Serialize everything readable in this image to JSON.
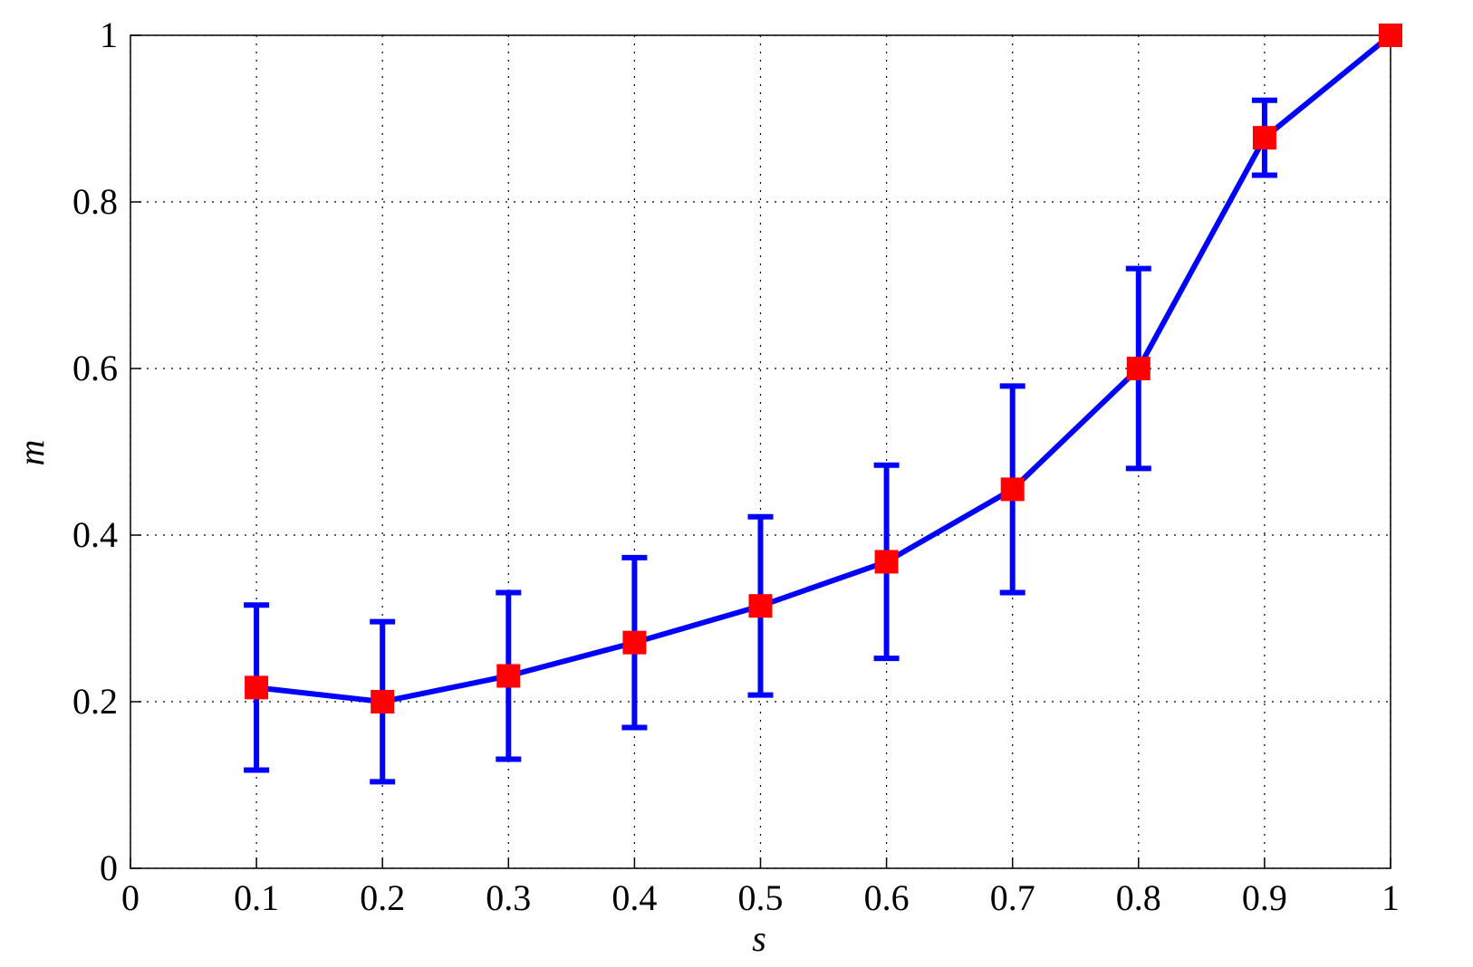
{
  "chart_data": {
    "type": "line",
    "xlabel": "s",
    "ylabel": "m",
    "x": [
      0.1,
      0.2,
      0.3,
      0.4,
      0.5,
      0.6,
      0.7,
      0.8,
      0.9,
      1
    ],
    "values": [
      0.217,
      0.2,
      0.231,
      0.271,
      0.315,
      0.368,
      0.455,
      0.6,
      0.877,
      1
    ],
    "errors": [
      0.099,
      0.096,
      0.1,
      0.102,
      0.107,
      0.116,
      0.124,
      0.12,
      0.045,
      null
    ],
    "color": "#0000ff",
    "marker_color": "#ff0000",
    "xlim": [
      0,
      1
    ],
    "xticks": [
      0,
      0.1,
      0.2,
      0.3,
      0.4,
      0.5,
      0.6,
      0.7,
      0.8,
      0.9,
      1
    ],
    "ylim": [
      0,
      1
    ],
    "yticks": [
      0,
      0.2,
      0.4,
      0.6,
      0.8,
      1
    ],
    "grid": true
  }
}
